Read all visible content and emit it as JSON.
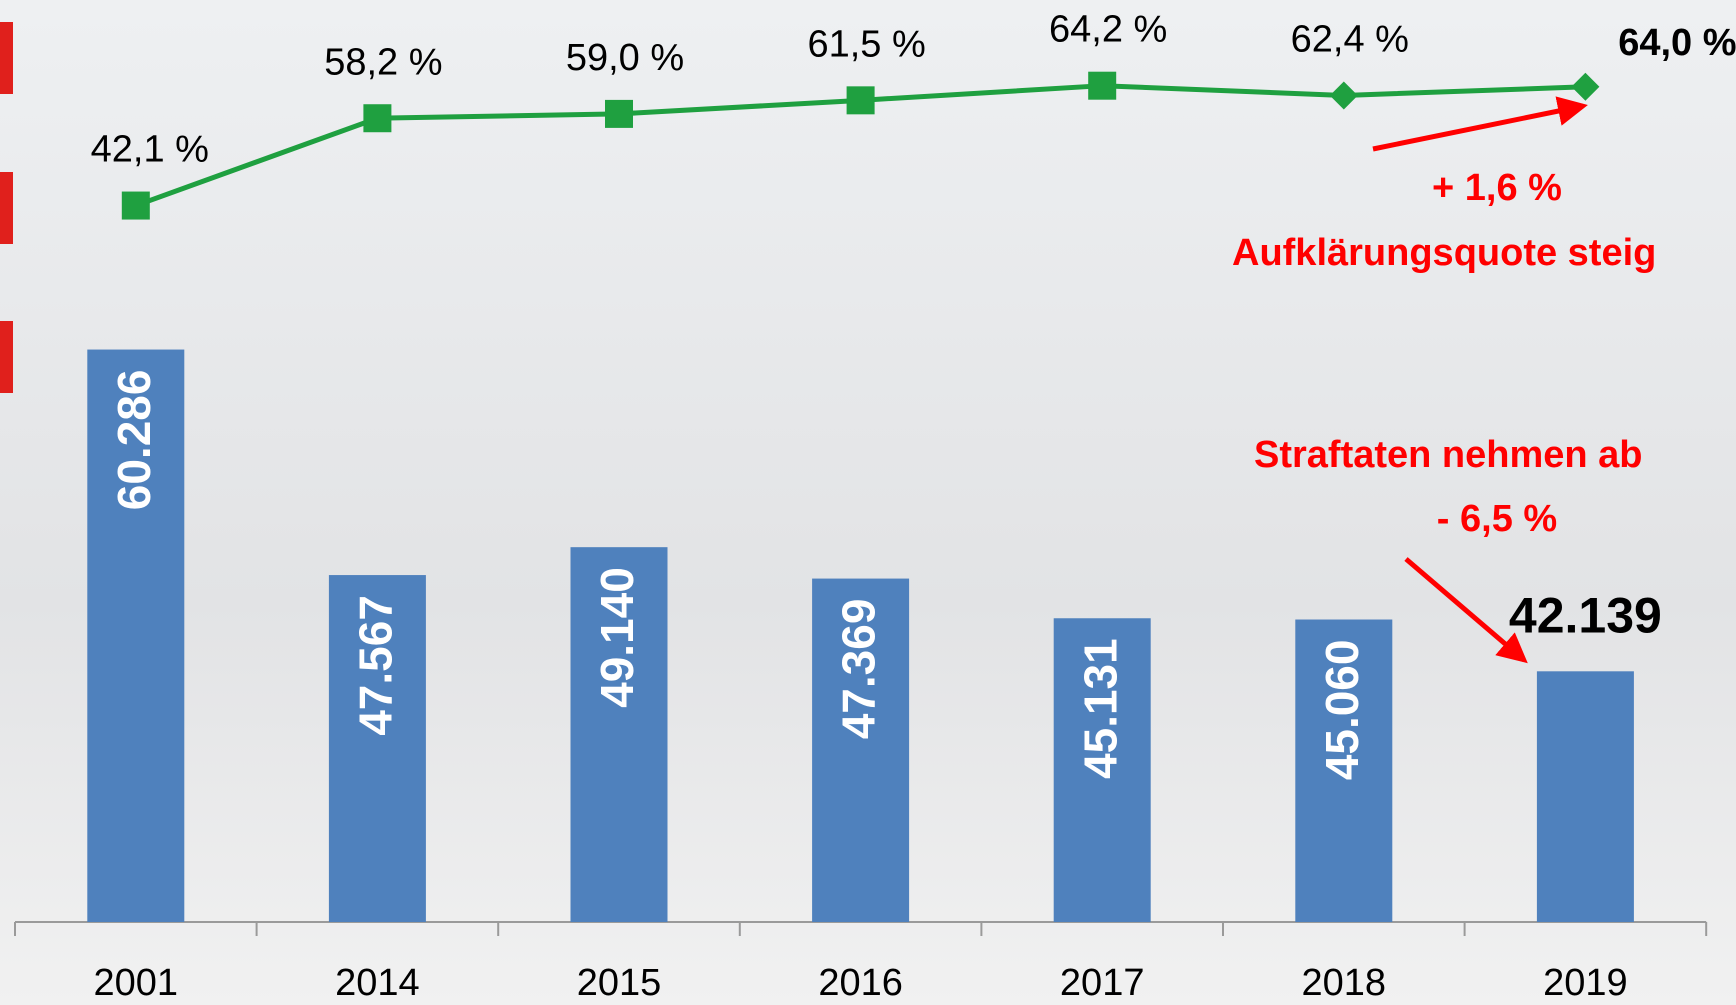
{
  "chart_data": {
    "type": "combo",
    "categories": [
      "2001",
      "2014",
      "2015",
      "2016",
      "2017",
      "2018",
      "2019"
    ],
    "ylim": [
      28000,
      80000
    ],
    "y2lim": [
      -90,
      80
    ],
    "series": [
      {
        "type": "bar",
        "color": "#4f81bd",
        "values": [
          60286,
          47567,
          49140,
          47369,
          45131,
          45060,
          42139
        ],
        "value_labels": [
          "60.286",
          "47.567",
          "49.140",
          "47.369",
          "45.131",
          "45.060",
          "42.139"
        ]
      },
      {
        "type": "line",
        "axis": "y2",
        "color": "#1fa040",
        "markers": [
          "square",
          "square",
          "square",
          "square",
          "square",
          "diamond",
          "diamond"
        ],
        "values": [
          42.1,
          58.2,
          59.0,
          61.5,
          64.2,
          62.4,
          64.0
        ],
        "value_labels": [
          "42,1 %",
          "58,2 %",
          "59,0 %",
          "61,5 %",
          "64,2 %",
          "62,4 %",
          "64,0 %"
        ]
      }
    ],
    "annotations": [
      {
        "text": "+ 1,6 %",
        "color": "#ff0000"
      },
      {
        "text": "Aufklärungsquote steig",
        "color": "#ff0000"
      },
      {
        "text": "Straftaten nehmen ab",
        "color": "#ff0000"
      },
      {
        "text": "- 6,5 %",
        "color": "#ff0000"
      }
    ]
  }
}
